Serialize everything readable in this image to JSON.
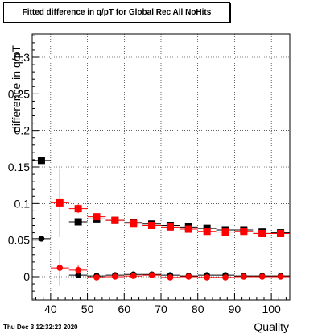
{
  "title": "Fitted difference in q/pT for Global Rec All NoHits",
  "datestamp": "Thu Dec  3 12:32:23 2020",
  "chart_data": {
    "type": "scatter",
    "xlabel": "Quality",
    "ylabel": "difference in q/pT",
    "xlim": [
      35,
      105
    ],
    "ylim": [
      -0.032,
      0.332
    ],
    "xticks": [
      40,
      50,
      60,
      70,
      80,
      90,
      100
    ],
    "yticks": [
      0,
      0.05,
      0.1,
      0.15,
      0.2,
      0.25,
      0.3
    ],
    "ytick_labels": [
      "0",
      "0.05",
      "0.1",
      "0.15",
      "0.2",
      "0.25",
      "0.3"
    ],
    "grid": true,
    "series": [
      {
        "marker": "square",
        "color": "#000000",
        "x": [
          37.5,
          47.5,
          52.5,
          57.5,
          62.5,
          67.5,
          72.5,
          77.5,
          82.5,
          87.5,
          92.5,
          97.5,
          102.5
        ],
        "y": [
          0.159,
          0.075,
          0.079,
          0.077,
          0.074,
          0.072,
          0.07,
          0.068,
          0.066,
          0.064,
          0.064,
          0.061,
          0.06
        ],
        "err": [
          0.004,
          0.004,
          0.003,
          0.003,
          0.003,
          0.003,
          0.003,
          0.003,
          0.003,
          0.003,
          0.003,
          0.003,
          0.003
        ]
      },
      {
        "marker": "square",
        "color": "#ff0000",
        "x": [
          42.5,
          47.5,
          52.5,
          57.5,
          62.5,
          67.5,
          72.5,
          77.5,
          82.5,
          87.5,
          92.5,
          97.5,
          102.5
        ],
        "y": [
          0.101,
          0.093,
          0.082,
          0.077,
          0.073,
          0.07,
          0.068,
          0.065,
          0.062,
          0.061,
          0.062,
          0.059,
          0.059
        ],
        "err": [
          0.047,
          0.006,
          0.004,
          0.004,
          0.003,
          0.003,
          0.003,
          0.003,
          0.003,
          0.003,
          0.003,
          0.003,
          0.003
        ]
      },
      {
        "marker": "circle",
        "color": "#000000",
        "x": [
          37.5,
          47.5,
          52.5,
          57.5,
          62.5,
          67.5,
          72.5,
          77.5,
          82.5,
          87.5,
          92.5,
          97.5,
          102.5
        ],
        "y": [
          0.052,
          0.002,
          0.001,
          0.002,
          0.003,
          0.003,
          0.002,
          0.001,
          0.002,
          0.002,
          0.001,
          0.001,
          0.001
        ],
        "err": [
          0.002,
          0.002,
          0.002,
          0.002,
          0.002,
          0.002,
          0.002,
          0.002,
          0.002,
          0.002,
          0.002,
          0.002,
          0.002
        ]
      },
      {
        "marker": "circle",
        "color": "#ff0000",
        "x": [
          42.5,
          47.5,
          52.5,
          57.5,
          62.5,
          67.5,
          72.5,
          77.5,
          82.5,
          87.5,
          92.5,
          97.5,
          102.5
        ],
        "y": [
          0.012,
          0.009,
          -0.001,
          0.0,
          0.001,
          0.002,
          -0.001,
          0.0,
          -0.001,
          -0.001,
          0.0,
          0.0,
          0.0
        ],
        "err": [
          0.024,
          0.006,
          0.003,
          0.003,
          0.003,
          0.003,
          0.003,
          0.003,
          0.003,
          0.003,
          0.003,
          0.003,
          0.003
        ]
      }
    ]
  }
}
